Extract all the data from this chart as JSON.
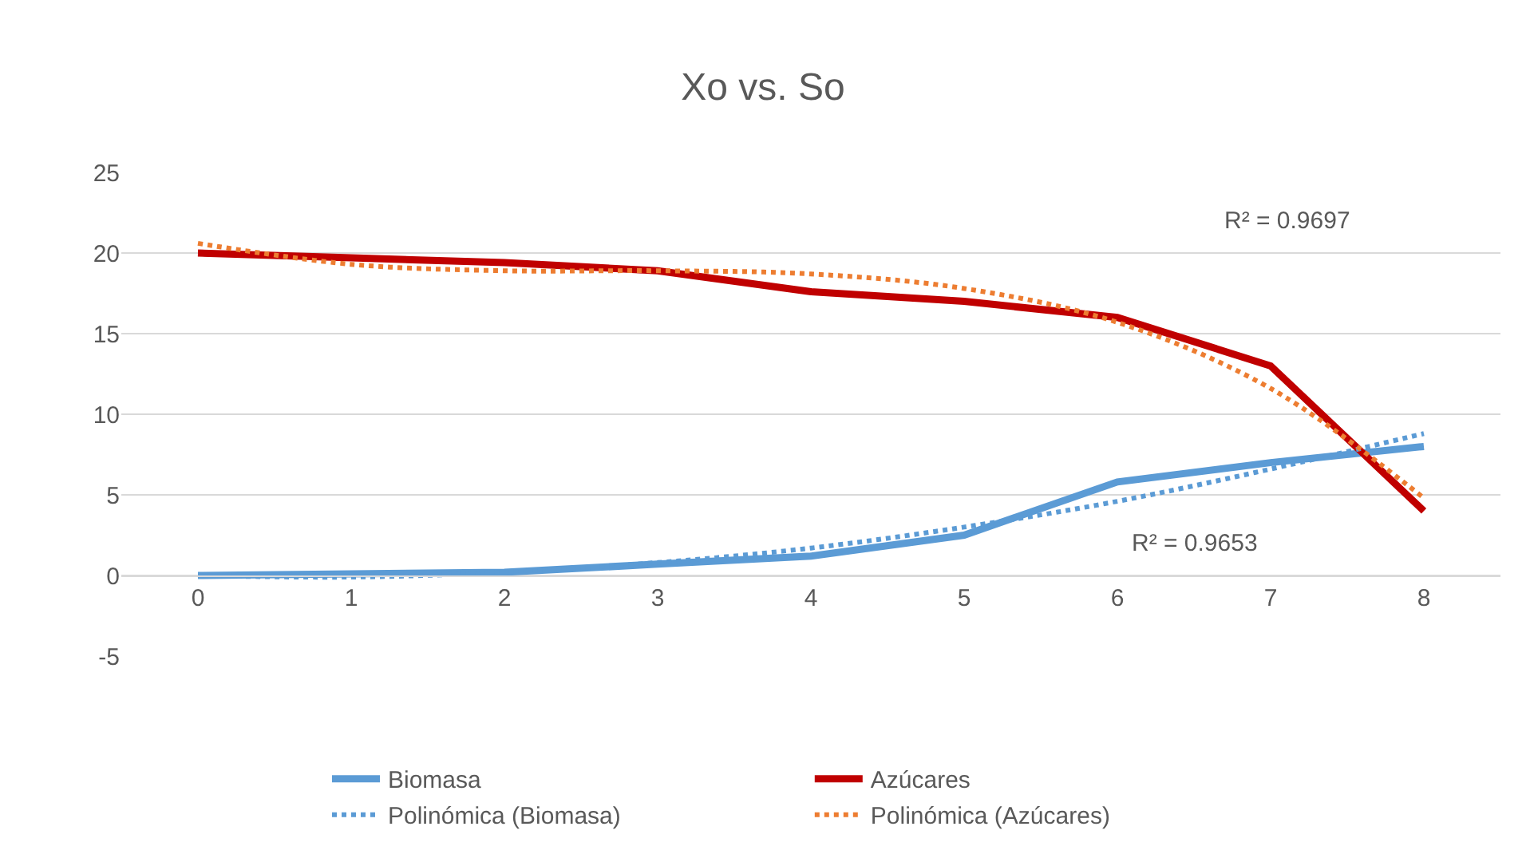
{
  "chart_data": {
    "type": "line",
    "title": "Xo vs. So",
    "x": [
      0,
      1,
      2,
      3,
      4,
      5,
      6,
      7,
      8
    ],
    "series": [
      {
        "name": "Biomasa",
        "color": "#5b9bd5",
        "line_style": "solid",
        "values": [
          0,
          0.1,
          0.2,
          0.7,
          1.2,
          2.5,
          5.8,
          7.0,
          8.0
        ]
      },
      {
        "name": "Azúcares",
        "color": "#c00000",
        "line_style": "solid",
        "values": [
          20,
          19.7,
          19.4,
          18.9,
          17.6,
          17.0,
          16.0,
          13.0,
          4.0
        ]
      },
      {
        "name": "Polinómica (Biomasa)",
        "color": "#5b9bd5",
        "line_style": "dotted",
        "values": [
          0,
          -0.1,
          0.2,
          0.8,
          1.7,
          3.0,
          4.6,
          6.6,
          8.8
        ]
      },
      {
        "name": "Polinómica (Azúcares)",
        "color": "#ed7d31",
        "line_style": "dotted",
        "values": [
          20.6,
          19.3,
          18.9,
          18.9,
          18.7,
          17.8,
          15.7,
          11.6,
          4.8
        ]
      }
    ],
    "xlim": [
      -0.5,
      8.5
    ],
    "xticks": [
      0,
      1,
      2,
      3,
      4,
      5,
      6,
      7,
      8
    ],
    "ylim": [
      -5,
      25
    ],
    "yticks": [
      -5,
      0,
      5,
      10,
      15,
      20,
      25
    ],
    "grid": "y",
    "legend": "bottom",
    "marker": "none",
    "annotations": [
      "R² = 0.9697",
      "R² = 0.9653"
    ]
  }
}
